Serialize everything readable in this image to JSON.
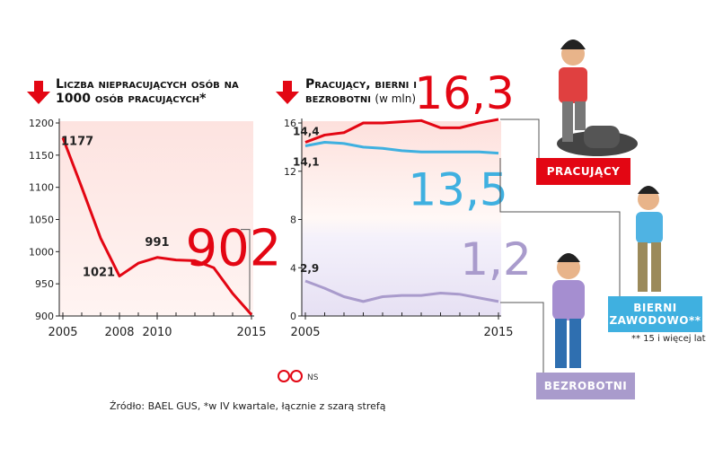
{
  "chart_data": [
    {
      "type": "line",
      "title": "Liczba niepracujących osób na 1000 osób pracujących*",
      "x": [
        2005,
        2006,
        2007,
        2008,
        2009,
        2010,
        2011,
        2012,
        2013,
        2014,
        2015
      ],
      "xlim": [
        2005,
        2015
      ],
      "xticks": [
        2005,
        2008,
        2010,
        2015
      ],
      "ylim": [
        900,
        1200
      ],
      "yticks": [
        900,
        950,
        1000,
        1050,
        1100,
        1150,
        1200
      ],
      "series": [
        {
          "color": "#e30613",
          "values": [
            1177,
            1100,
            1021,
            962,
            982,
            991,
            987,
            986,
            975,
            935,
            902
          ],
          "value_labels": [
            "1177",
            null,
            "1021",
            null,
            null,
            "991",
            null,
            null,
            null,
            null,
            "902"
          ]
        }
      ]
    },
    {
      "type": "line",
      "title": "Pracujący, bierni i bezrobotni",
      "subtitle": "(w mln)",
      "x": [
        2005,
        2006,
        2007,
        2008,
        2009,
        2010,
        2011,
        2012,
        2013,
        2014,
        2015
      ],
      "xlim": [
        2005,
        2015
      ],
      "xticks": [
        2005,
        2015
      ],
      "ylim": [
        0,
        16
      ],
      "yticks": [
        0,
        4,
        8,
        12,
        16
      ],
      "series": [
        {
          "name": "PRACUJĄCY",
          "color": "#e30613",
          "values": [
            14.4,
            15.0,
            15.2,
            16.0,
            16.0,
            16.1,
            16.2,
            15.6,
            15.6,
            16.0,
            16.3
          ],
          "value_labels": [
            "14,4",
            null,
            null,
            null,
            null,
            null,
            null,
            null,
            null,
            null,
            "16,3"
          ]
        },
        {
          "name": "BIERNI ZAWODOWO**",
          "color": "#3fb0e0",
          "values": [
            14.1,
            14.4,
            14.3,
            14.0,
            13.9,
            13.7,
            13.6,
            13.6,
            13.6,
            13.6,
            13.5
          ],
          "value_labels": [
            "14,1",
            null,
            null,
            null,
            null,
            null,
            null,
            null,
            null,
            null,
            "13,5"
          ]
        },
        {
          "name": "BEZROBOTNI",
          "color": "#a99bcc",
          "values": [
            2.9,
            2.3,
            1.6,
            1.2,
            1.6,
            1.7,
            1.7,
            1.9,
            1.8,
            1.5,
            1.2
          ],
          "value_labels": [
            "2,9",
            null,
            null,
            null,
            null,
            null,
            null,
            null,
            null,
            null,
            "1,2"
          ]
        }
      ]
    }
  ],
  "footnote": "** 15 i więcej lat",
  "logo": "NS",
  "source": "Źródło: BAEL GUS, *w IV kwartale, łącznie z szarą strefą"
}
